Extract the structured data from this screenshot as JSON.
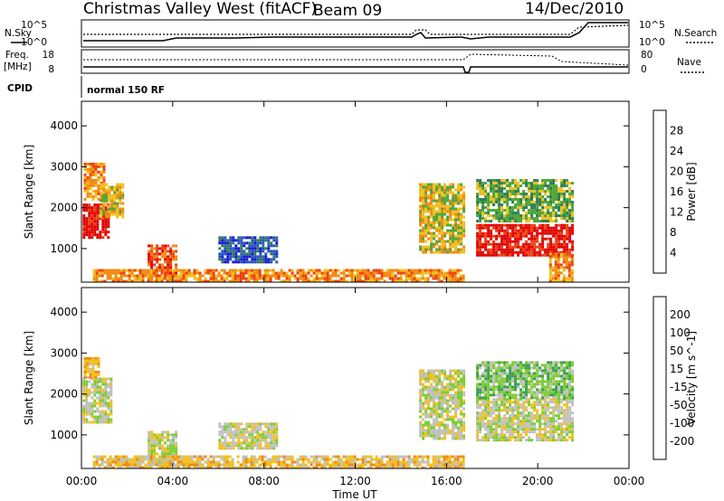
{
  "chart_data": {
    "type": "heatmap",
    "header": {
      "title": "Christmas Valley West (fitACF)",
      "beam": "Beam 09",
      "date": "14/Dec/2010",
      "cpid_label": "CPID",
      "cpid_text": "normal 150 RF",
      "nsky_label": "N.Sky",
      "nsearch_label": "N.Search",
      "freq_label": "Freq.",
      "freq_unit": "[MHz]",
      "nave_label": "Nave",
      "noise_ticks": [
        "10^5",
        "10^0"
      ],
      "noise_right_ticks": [
        "10^5",
        "10^0"
      ],
      "freq_ticks": [
        "18",
        "8"
      ],
      "nave_ticks": [
        "80",
        "0"
      ]
    },
    "x_axis": {
      "label": "Time UT",
      "ticks": [
        "00:00",
        "04:00",
        "08:00",
        "12:00",
        "16:00",
        "20:00",
        "00:00"
      ],
      "ticks_hours": [
        0,
        4,
        8,
        12,
        16,
        20,
        24
      ],
      "range_hours": [
        0,
        24
      ]
    },
    "y_axis": {
      "label": "Slant Range [km]",
      "ticks": [
        1000,
        2000,
        3000,
        4000
      ],
      "range": [
        180,
        4600
      ]
    },
    "panels": [
      {
        "name": "power",
        "colorbar_label": "Power [dB]",
        "colorbar_ticks": [
          "4",
          "8",
          "12",
          "16",
          "20",
          "24",
          "28"
        ],
        "colors": [
          "#1a1ad6",
          "#2a55c0",
          "#2e7d5a",
          "#4fa53a",
          "#f0c020",
          "#f08a10",
          "#ee4010",
          "#e00000"
        ],
        "regions": [
          {
            "t": [
              0.05,
              1.2
            ],
            "r": [
              1300,
              2100
            ],
            "level": 7
          },
          {
            "t": [
              0.1,
              1.0
            ],
            "r": [
              2200,
              3100
            ],
            "level": 5
          },
          {
            "t": [
              0.8,
              1.8
            ],
            "r": [
              1800,
              2600
            ],
            "level": 4
          },
          {
            "t": [
              2.9,
              4.2
            ],
            "r": [
              250,
              1100
            ],
            "level": 6
          },
          {
            "t": [
              0.5,
              16.8
            ],
            "r": [
              220,
              500
            ],
            "level": 5
          },
          {
            "t": [
              6.0,
              8.5
            ],
            "r": [
              650,
              1300
            ],
            "level": 1
          },
          {
            "t": [
              14.8,
              16.8
            ],
            "r": [
              900,
              2600
            ],
            "level": 4
          },
          {
            "t": [
              17.3,
              21.5
            ],
            "r": [
              850,
              1600
            ],
            "level": 7
          },
          {
            "t": [
              17.3,
              21.5
            ],
            "r": [
              1700,
              2700
            ],
            "level": 3
          },
          {
            "t": [
              20.5,
              21.5
            ],
            "r": [
              220,
              900
            ],
            "level": 5
          }
        ]
      },
      {
        "name": "velocity",
        "colorbar_label": "Velocity [m s^-1]",
        "colorbar_ticks": [
          "200",
          "100",
          "50",
          "15",
          "-15",
          "-50",
          "-100",
          "-200"
        ],
        "colors": [
          "#1a2ad6",
          "#2a78b0",
          "#3aa050",
          "#7ccc30",
          "#c0c0c0",
          "#f0c020",
          "#f08a10",
          "#ee4010",
          "#e00000"
        ],
        "regions": [
          {
            "t": [
              0.05,
              1.3
            ],
            "r": [
              1300,
              2400
            ],
            "level": 4
          },
          {
            "t": [
              0.1,
              0.8
            ],
            "r": [
              2400,
              2900
            ],
            "level": 5
          },
          {
            "t": [
              2.9,
              4.2
            ],
            "r": [
              250,
              1100
            ],
            "level": 4
          },
          {
            "t": [
              0.5,
              16.8
            ],
            "r": [
              220,
              500
            ],
            "level": 5
          },
          {
            "t": [
              6.0,
              8.5
            ],
            "r": [
              650,
              1300
            ],
            "level": 4
          },
          {
            "t": [
              14.8,
              16.8
            ],
            "r": [
              900,
              2600
            ],
            "level": 4
          },
          {
            "t": [
              17.3,
              21.5
            ],
            "r": [
              900,
              1900
            ],
            "level": 4
          },
          {
            "t": [
              17.3,
              21.5
            ],
            "r": [
              1900,
              2800
            ],
            "level": 3
          }
        ]
      }
    ]
  }
}
